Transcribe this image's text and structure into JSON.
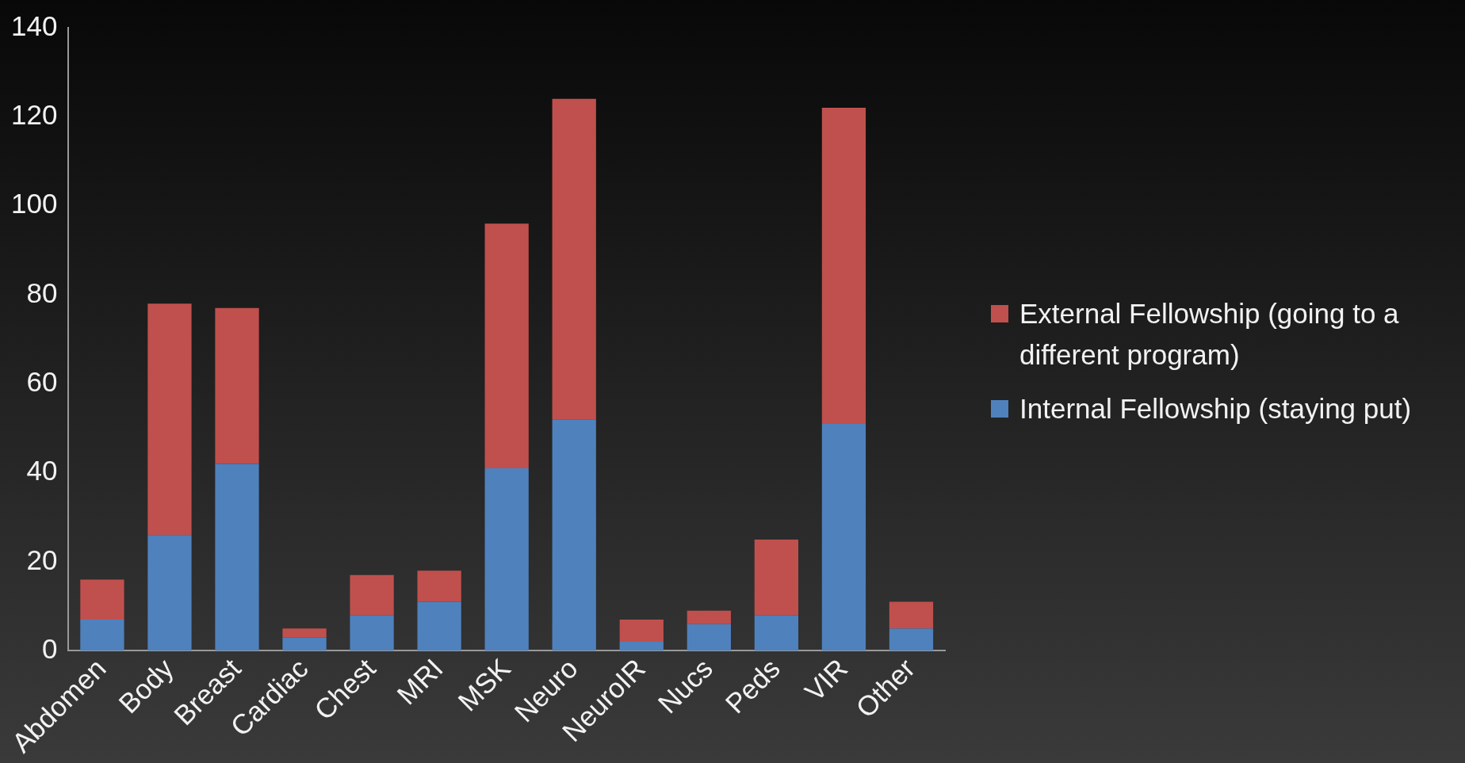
{
  "chart_data": {
    "type": "bar",
    "stacked": true,
    "categories": [
      "Abdomen",
      "Body",
      "Breast",
      "Cardiac",
      "Chest",
      "MRI",
      "MSK",
      "Neuro",
      "NeuroIR",
      "Nucs",
      "Peds",
      "VIR",
      "Other"
    ],
    "series": [
      {
        "name": "Internal Fellowship (staying put)",
        "color": "#4f81bd",
        "values": [
          7,
          26,
          42,
          3,
          8,
          11,
          41,
          52,
          2,
          6,
          8,
          51,
          5
        ]
      },
      {
        "name": "External Fellowship (going to a different program)",
        "color": "#c0504d",
        "values": [
          9,
          52,
          35,
          2,
          9,
          7,
          55,
          72,
          5,
          3,
          17,
          71,
          6
        ]
      }
    ],
    "ylim": [
      0,
      140
    ],
    "yticks": [
      0,
      20,
      40,
      60,
      80,
      100,
      120,
      140
    ],
    "legend": "right"
  }
}
